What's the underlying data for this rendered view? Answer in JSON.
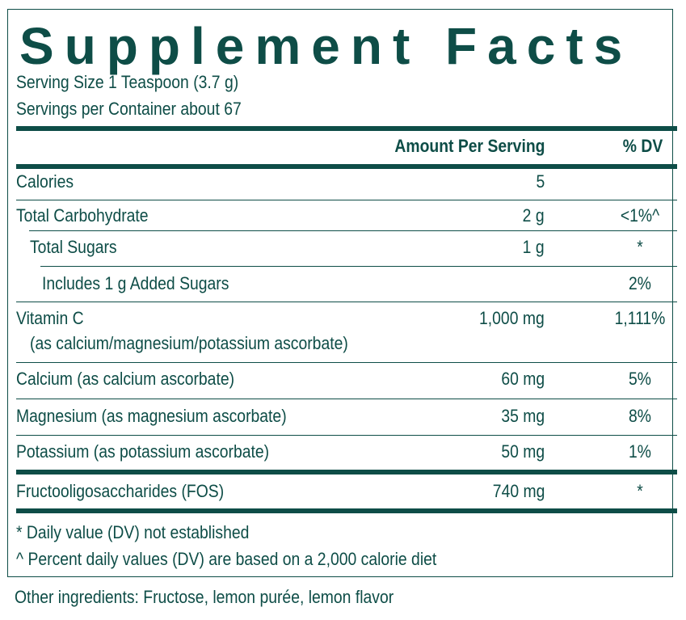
{
  "title": "Supplement Facts",
  "serving_size": "Serving Size 1 Teaspoon (3.7 g)",
  "servings_per_container": "Servings per Container about 67",
  "header": {
    "amount": "Amount Per Serving",
    "dv": "% DV"
  },
  "rows": [
    {
      "name": "Calories",
      "amount": "5",
      "dv": ""
    },
    {
      "name": "Total Carbohydrate",
      "amount": "2 g",
      "dv": "<1%^"
    },
    {
      "name": "Total Sugars",
      "amount": "1 g",
      "dv": "*"
    },
    {
      "name": "Includes 1 g Added Sugars",
      "amount": "",
      "dv": "2%"
    },
    {
      "name": "Vitamin C",
      "sub": "(as calcium/magnesium/potassium ascorbate)",
      "amount": "1,000 mg",
      "dv": "1,111%"
    },
    {
      "name": "Calcium (as calcium ascorbate)",
      "amount": "60 mg",
      "dv": "5%"
    },
    {
      "name": "Magnesium (as magnesium ascorbate)",
      "amount": "35 mg",
      "dv": "8%"
    },
    {
      "name": "Potassium (as potassium ascorbate)",
      "amount": "50 mg",
      "dv": "1%"
    },
    {
      "name": "Fructooligosaccharides (FOS)",
      "amount": "740 mg",
      "dv": "*"
    }
  ],
  "footnotes": [
    "* Daily value (DV) not established",
    "^ Percent daily values (DV) are based on a 2,000 calorie diet"
  ],
  "other_ingredients": "Other ingredients: Fructose, lemon purée, lemon flavor",
  "colors": {
    "accent": "#0e4d47",
    "background": "#ffffff"
  }
}
